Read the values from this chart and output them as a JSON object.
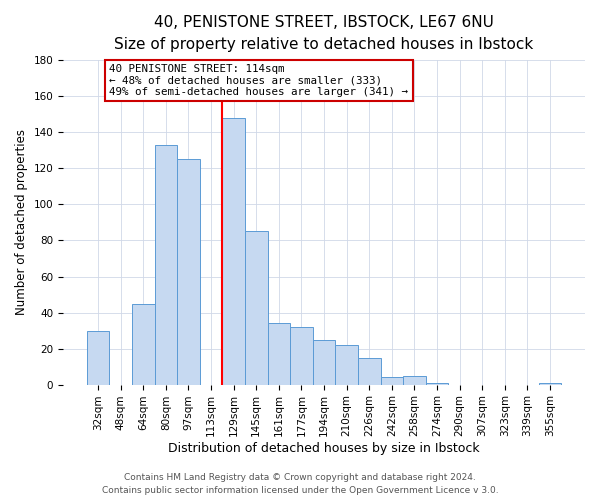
{
  "title": "40, PENISTONE STREET, IBSTOCK, LE67 6NU",
  "subtitle": "Size of property relative to detached houses in Ibstock",
  "xlabel": "Distribution of detached houses by size in Ibstock",
  "ylabel": "Number of detached properties",
  "bar_labels": [
    "32sqm",
    "48sqm",
    "64sqm",
    "80sqm",
    "97sqm",
    "113sqm",
    "129sqm",
    "145sqm",
    "161sqm",
    "177sqm",
    "194sqm",
    "210sqm",
    "226sqm",
    "242sqm",
    "258sqm",
    "274sqm",
    "290sqm",
    "307sqm",
    "323sqm",
    "339sqm",
    "355sqm"
  ],
  "bar_heights": [
    30,
    0,
    45,
    133,
    125,
    0,
    148,
    85,
    34,
    32,
    25,
    22,
    15,
    4,
    5,
    1,
    0,
    0,
    0,
    0,
    1
  ],
  "bar_color": "#c6d9f1",
  "bar_edge_color": "#5b9bd5",
  "vline_color": "red",
  "vline_index": 6,
  "annotation_title": "40 PENISTONE STREET: 114sqm",
  "annotation_line1": "← 48% of detached houses are smaller (333)",
  "annotation_line2": "49% of semi-detached houses are larger (341) →",
  "annotation_box_color": "white",
  "annotation_box_edge_color": "#cc0000",
  "ylim": [
    0,
    180
  ],
  "yticks": [
    0,
    20,
    40,
    60,
    80,
    100,
    120,
    140,
    160,
    180
  ],
  "footer1": "Contains HM Land Registry data © Crown copyright and database right 2024.",
  "footer2": "Contains public sector information licensed under the Open Government Licence v 3.0.",
  "title_fontsize": 11,
  "subtitle_fontsize": 9.5,
  "xlabel_fontsize": 9,
  "ylabel_fontsize": 8.5,
  "tick_fontsize": 7.5,
  "footer_fontsize": 6.5
}
